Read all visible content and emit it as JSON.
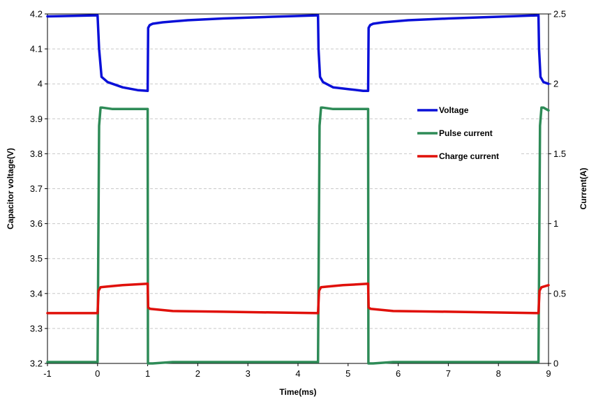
{
  "chart_data": {
    "type": "line",
    "xlabel": "Time(ms)",
    "ylabel_left": "Capacitor voltage(V)",
    "ylabel_right": "Current(A)",
    "xlim": [
      -1,
      9
    ],
    "ylim_left": [
      3.2,
      4.2
    ],
    "ylim_right": [
      0,
      2.5
    ],
    "x_ticks": [
      -1,
      0,
      1,
      2,
      3,
      4,
      5,
      6,
      7,
      8,
      9
    ],
    "y_left_ticks": [
      "3.2",
      "3.3",
      "3.4",
      "3.5",
      "3.6",
      "3.7",
      "3.8",
      "3.9",
      "4",
      "4.1",
      "4.2"
    ],
    "y_right_ticks": [
      "0",
      "0.5",
      "1",
      "1.5",
      "2",
      "2.5"
    ],
    "grid": true,
    "legend_position": "top-right",
    "colors": {
      "Voltage": "#0a10d8",
      "Pulse current": "#2e8b57",
      "Charge current": "#e0100a"
    },
    "series": [
      {
        "name": "Voltage",
        "axis": "left",
        "x": [
          -1,
          0,
          0.03,
          0.08,
          0.2,
          0.5,
          0.8,
          1.0,
          1.01,
          1.04,
          1.1,
          1.3,
          1.8,
          2.5,
          3.5,
          4.4,
          4.41,
          4.44,
          4.5,
          4.7,
          5.0,
          5.3,
          5.4,
          5.41,
          5.44,
          5.5,
          5.7,
          6.2,
          7.0,
          8.0,
          8.8,
          8.81,
          8.84,
          8.9,
          9.0
        ],
        "values": [
          4.193,
          4.196,
          4.1,
          4.02,
          4.005,
          3.99,
          3.982,
          3.98,
          4.16,
          4.168,
          4.172,
          4.176,
          4.182,
          4.187,
          4.192,
          4.196,
          4.1,
          4.02,
          4.005,
          3.99,
          3.985,
          3.98,
          3.98,
          4.16,
          4.168,
          4.172,
          4.176,
          4.182,
          4.187,
          4.192,
          4.196,
          4.1,
          4.02,
          4.005,
          4.0
        ]
      },
      {
        "name": "Pulse current",
        "axis": "right",
        "x": [
          -1,
          0,
          0.03,
          0.06,
          0.1,
          0.3,
          1.0,
          1.005,
          1.1,
          1.5,
          4.4,
          4.43,
          4.46,
          4.5,
          4.7,
          5.4,
          5.405,
          5.5,
          5.9,
          8.8,
          8.83,
          8.86,
          8.9,
          9.0
        ],
        "values": [
          0.01,
          0.01,
          1.7,
          1.83,
          1.83,
          1.82,
          1.82,
          0.0,
          0.0,
          0.01,
          0.01,
          1.7,
          1.83,
          1.83,
          1.82,
          1.82,
          0.0,
          0.0,
          0.01,
          0.01,
          1.7,
          1.83,
          1.83,
          1.81
        ]
      },
      {
        "name": "Charge current",
        "axis": "right",
        "x": [
          -1,
          0,
          0.02,
          0.06,
          0.2,
          0.5,
          1.0,
          1.01,
          1.05,
          1.5,
          2.5,
          4.4,
          4.42,
          4.46,
          4.6,
          4.9,
          5.4,
          5.41,
          5.45,
          5.9,
          7.0,
          8.8,
          8.82,
          8.86,
          9.0
        ],
        "values": [
          0.36,
          0.36,
          0.52,
          0.545,
          0.55,
          0.56,
          0.57,
          0.4,
          0.39,
          0.375,
          0.37,
          0.36,
          0.52,
          0.545,
          0.55,
          0.56,
          0.57,
          0.4,
          0.39,
          0.375,
          0.37,
          0.36,
          0.52,
          0.545,
          0.56
        ]
      }
    ]
  }
}
